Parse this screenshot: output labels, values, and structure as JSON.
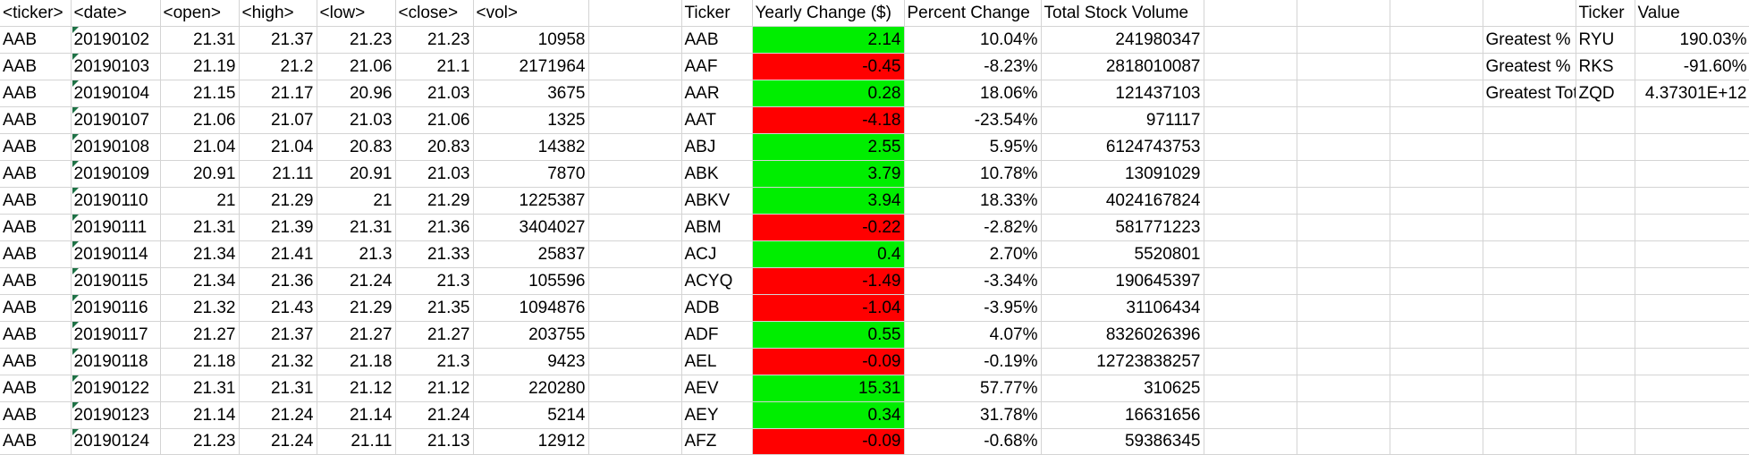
{
  "raw": {
    "headers": [
      "<ticker>",
      "<date>",
      "<open>",
      "<high>",
      "<low>",
      "<close>",
      "<vol>"
    ],
    "rows": [
      [
        "AAB",
        "20190102",
        "21.31",
        "21.37",
        "21.23",
        "21.23",
        "10958"
      ],
      [
        "AAB",
        "20190103",
        "21.19",
        "21.2",
        "21.06",
        "21.1",
        "2171964"
      ],
      [
        "AAB",
        "20190104",
        "21.15",
        "21.17",
        "20.96",
        "21.03",
        "3675"
      ],
      [
        "AAB",
        "20190107",
        "21.06",
        "21.07",
        "21.03",
        "21.06",
        "1325"
      ],
      [
        "AAB",
        "20190108",
        "21.04",
        "21.04",
        "20.83",
        "20.83",
        "14382"
      ],
      [
        "AAB",
        "20190109",
        "20.91",
        "21.11",
        "20.91",
        "21.03",
        "7870"
      ],
      [
        "AAB",
        "20190110",
        "21",
        "21.29",
        "21",
        "21.29",
        "1225387"
      ],
      [
        "AAB",
        "20190111",
        "21.31",
        "21.39",
        "21.31",
        "21.36",
        "3404027"
      ],
      [
        "AAB",
        "20190114",
        "21.34",
        "21.41",
        "21.3",
        "21.33",
        "25837"
      ],
      [
        "AAB",
        "20190115",
        "21.34",
        "21.36",
        "21.24",
        "21.3",
        "105596"
      ],
      [
        "AAB",
        "20190116",
        "21.32",
        "21.43",
        "21.29",
        "21.35",
        "1094876"
      ],
      [
        "AAB",
        "20190117",
        "21.27",
        "21.37",
        "21.27",
        "21.27",
        "203755"
      ],
      [
        "AAB",
        "20190118",
        "21.18",
        "21.32",
        "21.18",
        "21.3",
        "9423"
      ],
      [
        "AAB",
        "20190122",
        "21.31",
        "21.31",
        "21.12",
        "21.12",
        "220280"
      ],
      [
        "AAB",
        "20190123",
        "21.14",
        "21.24",
        "21.14",
        "21.24",
        "5214"
      ],
      [
        "AAB",
        "20190124",
        "21.23",
        "21.24",
        "21.11",
        "21.13",
        "12912"
      ]
    ]
  },
  "summary": {
    "headers": [
      "Ticker",
      "Yearly Change ($)",
      "Percent Change",
      "Total Stock Volume"
    ],
    "rows": [
      [
        "AAB",
        "2.14",
        "10.04%",
        "241980347"
      ],
      [
        "AAF",
        "-0.45",
        "-8.23%",
        "2818010087"
      ],
      [
        "AAR",
        "0.28",
        "18.06%",
        "121437103"
      ],
      [
        "AAT",
        "-4.18",
        "-23.54%",
        "971117"
      ],
      [
        "ABJ",
        "2.55",
        "5.95%",
        "6124743753"
      ],
      [
        "ABK",
        "3.79",
        "10.78%",
        "13091029"
      ],
      [
        "ABKV",
        "3.94",
        "18.33%",
        "4024167824"
      ],
      [
        "ABM",
        "-0.22",
        "-2.82%",
        "581771223"
      ],
      [
        "ACJ",
        "0.4",
        "2.70%",
        "5520801"
      ],
      [
        "ACYQ",
        "-1.49",
        "-3.34%",
        "190645397"
      ],
      [
        "ADB",
        "-1.04",
        "-3.95%",
        "31106434"
      ],
      [
        "ADF",
        "0.55",
        "4.07%",
        "8326026396"
      ],
      [
        "AEL",
        "-0.09",
        "-0.19%",
        "12723838257"
      ],
      [
        "AEV",
        "15.31",
        "57.77%",
        "310625"
      ],
      [
        "AEY",
        "0.34",
        "31.78%",
        "16631656"
      ],
      [
        "AFZ",
        "-0.09",
        "-0.68%",
        "59386345"
      ]
    ]
  },
  "greatest": {
    "headers": [
      "Ticker",
      "Value"
    ],
    "rows": [
      [
        "Greatest % Increase",
        "RYU",
        "190.03%"
      ],
      [
        "Greatest % Decrease",
        "RKS",
        "-91.60%"
      ],
      [
        "Greatest Total Volume",
        "ZQD",
        "4.37301E+12"
      ]
    ]
  },
  "colors": {
    "positive_fill": "#00ee00",
    "negative_fill": "#ff0000",
    "gridline": "#d4d4d4",
    "text_marker": "#1e7145"
  }
}
